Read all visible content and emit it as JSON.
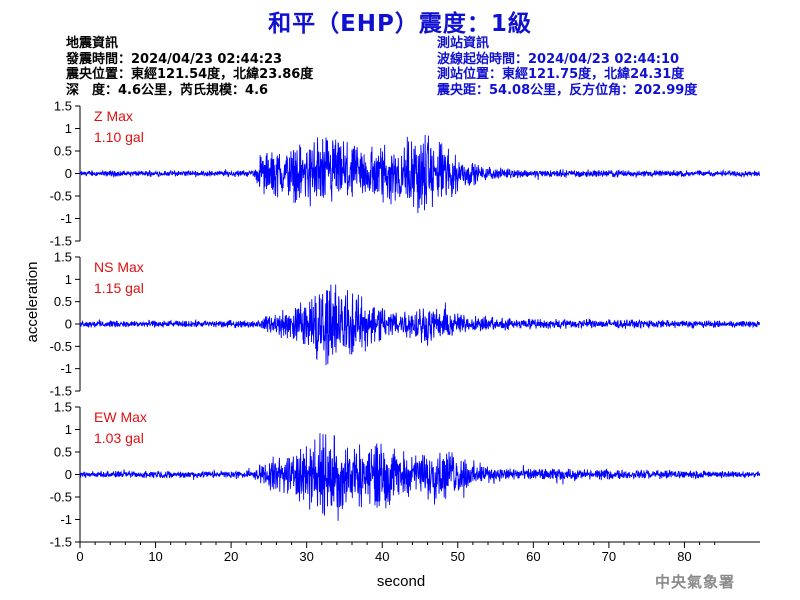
{
  "header": {
    "title": "和平（EHP）震度：1級",
    "quake_info": {
      "heading": "地震資訊",
      "origin_time": "發震時間：2024/04/23 02:44:23",
      "epicenter": "震央位置：東經121.54度，北緯23.86度",
      "depth_magnitude": "深　度：4.6公里，芮氏規模：4.6"
    },
    "station_info": {
      "heading": "測站資訊",
      "wave_start": "波線起始時間：2024/04/23 02:44:10",
      "location": "測站位置：東經121.75度，北緯24.31度",
      "distance": "震央距：54.08公里，反方位角：202.99度"
    }
  },
  "footer": {
    "agency": "中央氣象署"
  },
  "chart_data": {
    "type": "line",
    "xlabel": "second",
    "ylabel": "acceleration",
    "xlim": [
      0,
      90
    ],
    "ylim": [
      -1.5,
      1.5
    ],
    "x_ticks": [
      "0",
      "10",
      "20",
      "30",
      "40",
      "50",
      "60",
      "70",
      "80"
    ],
    "y_ticks": [
      "1.5",
      "1",
      "0.5",
      "0",
      "-0.5",
      "-1",
      "-1.5"
    ],
    "color": "#0000ff",
    "series": [
      {
        "name": "Z",
        "max_label": "Z Max",
        "max_value": "1.10 gal",
        "envelope": [
          [
            0,
            0.05
          ],
          [
            23,
            0.06
          ],
          [
            24,
            0.4
          ],
          [
            26,
            0.45
          ],
          [
            28,
            0.5
          ],
          [
            30,
            0.6
          ],
          [
            32,
            0.75
          ],
          [
            34,
            0.7
          ],
          [
            36,
            0.5
          ],
          [
            38,
            0.55
          ],
          [
            40,
            0.6
          ],
          [
            42,
            0.55
          ],
          [
            44,
            0.75
          ],
          [
            46,
            0.8
          ],
          [
            48,
            0.6
          ],
          [
            50,
            0.35
          ],
          [
            53,
            0.15
          ],
          [
            57,
            0.08
          ],
          [
            90,
            0.05
          ]
        ]
      },
      {
        "name": "NS",
        "max_label": "NS Max",
        "max_value": "1.15 gal",
        "envelope": [
          [
            0,
            0.06
          ],
          [
            24,
            0.07
          ],
          [
            25,
            0.2
          ],
          [
            28,
            0.3
          ],
          [
            30,
            0.55
          ],
          [
            32,
            0.8
          ],
          [
            33,
            0.9
          ],
          [
            35,
            0.65
          ],
          [
            38,
            0.5
          ],
          [
            40,
            0.35
          ],
          [
            43,
            0.25
          ],
          [
            46,
            0.4
          ],
          [
            48,
            0.3
          ],
          [
            52,
            0.15
          ],
          [
            58,
            0.1
          ],
          [
            90,
            0.06
          ]
        ]
      },
      {
        "name": "EW",
        "max_label": "EW Max",
        "max_value": "1.03 gal",
        "envelope": [
          [
            0,
            0.06
          ],
          [
            23,
            0.07
          ],
          [
            24,
            0.25
          ],
          [
            27,
            0.35
          ],
          [
            30,
            0.6
          ],
          [
            32,
            0.85
          ],
          [
            34,
            0.8
          ],
          [
            36,
            0.55
          ],
          [
            38,
            0.6
          ],
          [
            40,
            0.7
          ],
          [
            42,
            0.45
          ],
          [
            44,
            0.35
          ],
          [
            47,
            0.55
          ],
          [
            49,
            0.45
          ],
          [
            52,
            0.25
          ],
          [
            56,
            0.12
          ],
          [
            90,
            0.06
          ]
        ]
      }
    ]
  }
}
